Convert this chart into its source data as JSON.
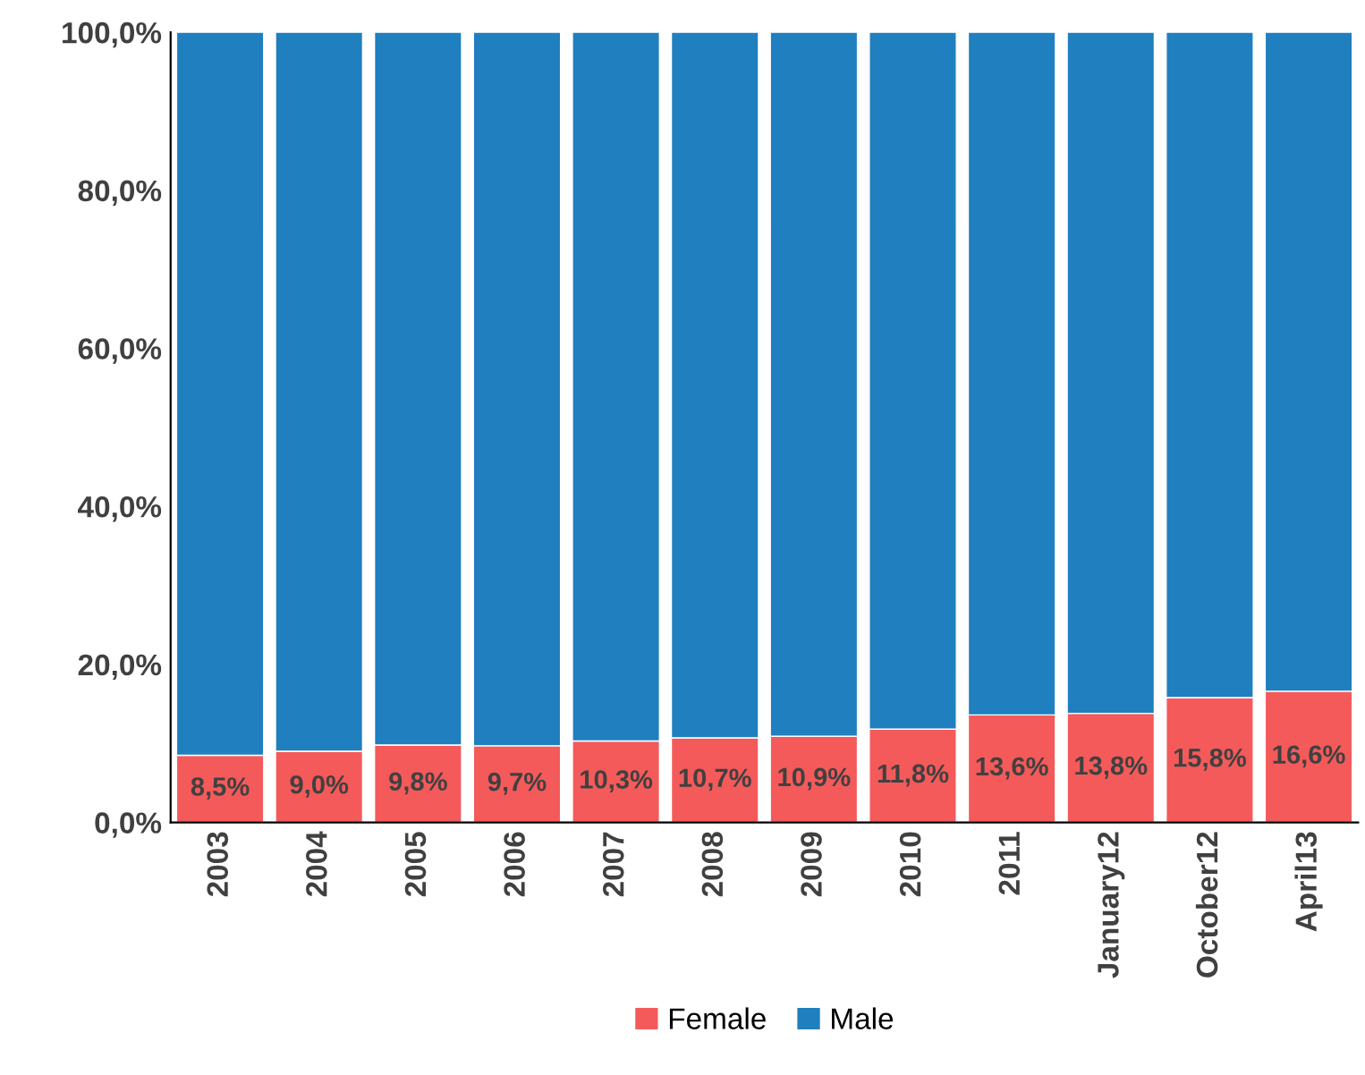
{
  "chart_data": {
    "type": "bar",
    "stacked": true,
    "categories": [
      "2003",
      "2004",
      "2005",
      "2006",
      "2007",
      "2008",
      "2009",
      "2010",
      "2011",
      "January12",
      "October12",
      "April13"
    ],
    "series": [
      {
        "name": "Female",
        "color": "#f45a5a",
        "values": [
          8.5,
          9.0,
          9.8,
          9.7,
          10.3,
          10.7,
          10.9,
          11.8,
          13.6,
          13.8,
          15.8,
          16.6
        ],
        "value_labels": [
          "8,5%",
          "9,0%",
          "9,8%",
          "9,7%",
          "10,3%",
          "10,7%",
          "10,9%",
          "11,8%",
          "13,6%",
          "13,8%",
          "15,8%",
          "16,6%"
        ]
      },
      {
        "name": "Male",
        "color": "#1f7fbf",
        "values": [
          91.5,
          91.0,
          90.2,
          90.3,
          89.7,
          89.3,
          89.1,
          88.2,
          86.4,
          86.2,
          84.2,
          83.4
        ]
      }
    ],
    "ylim": [
      0,
      100
    ],
    "yticks": [
      {
        "value": 0,
        "label": "0,0%"
      },
      {
        "value": 20,
        "label": "20,0%"
      },
      {
        "value": 40,
        "label": "40,0%"
      },
      {
        "value": 60,
        "label": "60,0%"
      },
      {
        "value": 80,
        "label": "80,0%"
      },
      {
        "value": 100,
        "label": "100,0%"
      }
    ],
    "grid": false,
    "legend": "bottom"
  }
}
